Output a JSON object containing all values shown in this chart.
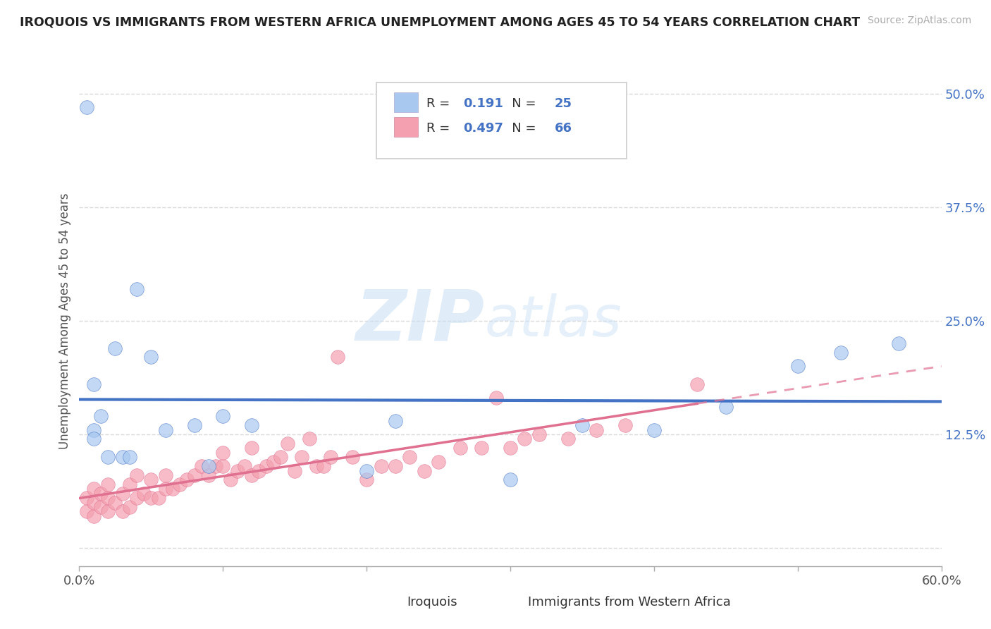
{
  "title": "IROQUOIS VS IMMIGRANTS FROM WESTERN AFRICA UNEMPLOYMENT AMONG AGES 45 TO 54 YEARS CORRELATION CHART",
  "source": "Source: ZipAtlas.com",
  "ylabel": "Unemployment Among Ages 45 to 54 years",
  "xlim": [
    0.0,
    0.6
  ],
  "ylim": [
    -0.02,
    0.52
  ],
  "xticks": [
    0.0,
    0.1,
    0.2,
    0.3,
    0.4,
    0.5,
    0.6
  ],
  "xticklabels": [
    "0.0%",
    "",
    "",
    "",
    "",
    "",
    "60.0%"
  ],
  "yticks_right": [
    0.0,
    0.125,
    0.25,
    0.375,
    0.5
  ],
  "yticklabels_right": [
    "",
    "12.5%",
    "25.0%",
    "37.5%",
    "50.0%"
  ],
  "legend_labels": [
    "Iroquois",
    "Immigrants from Western Africa"
  ],
  "legend_R": [
    0.191,
    0.497
  ],
  "legend_N": [
    25,
    66
  ],
  "iroquois_color": "#a8c8f0",
  "immigrants_color": "#f4a0b0",
  "iroquois_line_color": "#4472c4",
  "immigrants_line_color": "#e07090",
  "watermark_zip": "ZIP",
  "watermark_atlas": "atlas",
  "background_color": "#ffffff",
  "grid_color": "#d0d0d0",
  "iroquois_x": [
    0.005,
    0.01,
    0.01,
    0.01,
    0.015,
    0.02,
    0.025,
    0.03,
    0.035,
    0.04,
    0.05,
    0.06,
    0.08,
    0.09,
    0.1,
    0.12,
    0.2,
    0.22,
    0.3,
    0.35,
    0.4,
    0.45,
    0.5,
    0.53,
    0.57
  ],
  "iroquois_y": [
    0.485,
    0.18,
    0.13,
    0.12,
    0.145,
    0.1,
    0.22,
    0.1,
    0.1,
    0.285,
    0.21,
    0.13,
    0.135,
    0.09,
    0.145,
    0.135,
    0.085,
    0.14,
    0.075,
    0.135,
    0.13,
    0.155,
    0.2,
    0.215,
    0.225
  ],
  "immigrants_x": [
    0.005,
    0.005,
    0.01,
    0.01,
    0.01,
    0.015,
    0.015,
    0.02,
    0.02,
    0.02,
    0.025,
    0.03,
    0.03,
    0.035,
    0.035,
    0.04,
    0.04,
    0.045,
    0.05,
    0.05,
    0.055,
    0.06,
    0.06,
    0.065,
    0.07,
    0.075,
    0.08,
    0.085,
    0.09,
    0.095,
    0.1,
    0.1,
    0.105,
    0.11,
    0.115,
    0.12,
    0.12,
    0.125,
    0.13,
    0.135,
    0.14,
    0.145,
    0.15,
    0.155,
    0.16,
    0.165,
    0.17,
    0.175,
    0.18,
    0.19,
    0.2,
    0.21,
    0.22,
    0.23,
    0.24,
    0.25,
    0.265,
    0.28,
    0.29,
    0.3,
    0.31,
    0.32,
    0.34,
    0.36,
    0.38,
    0.43
  ],
  "immigrants_y": [
    0.04,
    0.055,
    0.035,
    0.05,
    0.065,
    0.045,
    0.06,
    0.04,
    0.055,
    0.07,
    0.05,
    0.04,
    0.06,
    0.045,
    0.07,
    0.055,
    0.08,
    0.06,
    0.055,
    0.075,
    0.055,
    0.065,
    0.08,
    0.065,
    0.07,
    0.075,
    0.08,
    0.09,
    0.08,
    0.09,
    0.09,
    0.105,
    0.075,
    0.085,
    0.09,
    0.08,
    0.11,
    0.085,
    0.09,
    0.095,
    0.1,
    0.115,
    0.085,
    0.1,
    0.12,
    0.09,
    0.09,
    0.1,
    0.21,
    0.1,
    0.075,
    0.09,
    0.09,
    0.1,
    0.085,
    0.095,
    0.11,
    0.11,
    0.165,
    0.11,
    0.12,
    0.125,
    0.12,
    0.13,
    0.135,
    0.18
  ]
}
